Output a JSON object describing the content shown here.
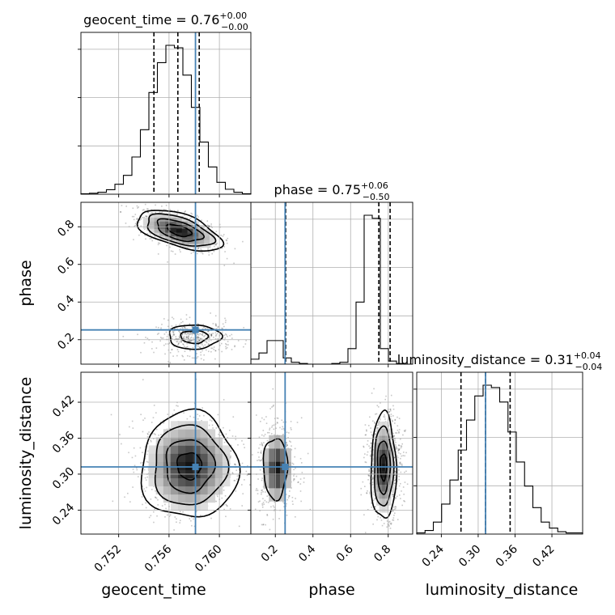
{
  "chart_data": {
    "type": "corner",
    "parameters": [
      "geocent_time",
      "phase",
      "luminosity_distance"
    ],
    "truth": {
      "geocent_time": 0.7581,
      "phase": 0.252,
      "luminosity_distance": 0.312
    },
    "titles": {
      "geocent_time": {
        "name": "geocent_time",
        "median": "0.76",
        "plus": "+0.00",
        "minus": "−0.00"
      },
      "phase": {
        "name": "phase",
        "median": "0.75",
        "plus": "+0.06",
        "minus": "−0.50"
      },
      "luminosity_distance": {
        "name": "luminosity_distance",
        "median": "0.31",
        "plus": "+0.04",
        "minus": "−0.04"
      }
    },
    "ranges": {
      "geocent_time": [
        0.749,
        0.7625
      ],
      "phase": [
        0.07,
        0.93
      ],
      "luminosity_distance": [
        0.2,
        0.47
      ]
    },
    "ticks": {
      "geocent_time": [
        "0.752",
        "0.756",
        "0.760"
      ],
      "phase_y": [
        "0.2",
        "0.4",
        "0.6",
        "0.8"
      ],
      "phase_x": [
        "0.2",
        "0.4",
        "0.6",
        "0.8"
      ],
      "luminosity_distance": [
        "0.24",
        "0.30",
        "0.36",
        "0.42"
      ]
    },
    "quantile_lines": {
      "geocent_time": [
        0.7548,
        0.7567,
        0.7584
      ],
      "phase": [
        0.255,
        0.75,
        0.81
      ],
      "luminosity_distance": [
        0.272,
        0.312,
        0.352
      ]
    },
    "histograms": {
      "geocent_time": {
        "edges_min": 0.749,
        "edges_max": 0.7625,
        "counts": [
          1,
          2,
          4,
          9,
          20,
          38,
          75,
          130,
          205,
          265,
          300,
          295,
          240,
          175,
          105,
          55,
          24,
          10,
          4,
          1
        ]
      },
      "phase": {
        "edges_min": 0.07,
        "edges_max": 0.93,
        "counts": [
          8,
          18,
          38,
          38,
          10,
          3,
          1,
          0,
          0,
          0,
          1,
          3,
          25,
          100,
          240,
          235,
          25,
          5,
          1,
          0
        ]
      },
      "luminosity_distance": {
        "edges_min": 0.2,
        "edges_max": 0.47,
        "counts": [
          1,
          3,
          10,
          25,
          45,
          70,
          95,
          115,
          124,
          122,
          110,
          85,
          60,
          40,
          22,
          10,
          5,
          2,
          1,
          1
        ]
      }
    },
    "grid": true
  }
}
